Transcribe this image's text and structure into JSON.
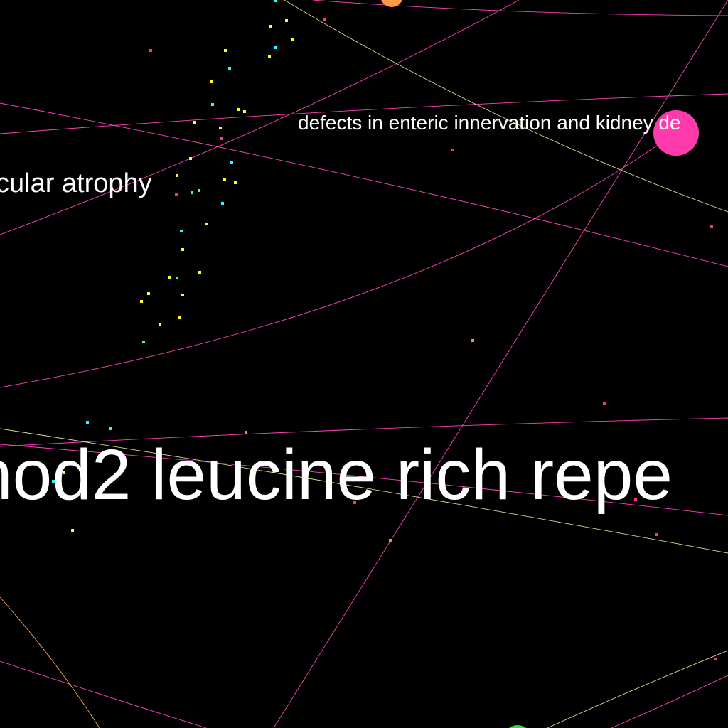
{
  "labels": {
    "enteric": "defects in enteric innervation and kidney de",
    "atrophy": "cular atrophy",
    "nod2": "nod2 leucine rich repe"
  },
  "colors": {
    "background": "#000000",
    "edge_pink": "#ff44bb",
    "edge_olive": "#d8d890",
    "edge_orange": "#ffaa44",
    "node_pink": "#ff3aaa",
    "node_orange": "#ff9944",
    "node_green": "#33dd33",
    "dot_yellow": "#ffff22",
    "dot_cyan": "#22ffff",
    "dot_pink": "#ff3388",
    "dot_orange": "#ff8844",
    "label": "#ffffff"
  }
}
